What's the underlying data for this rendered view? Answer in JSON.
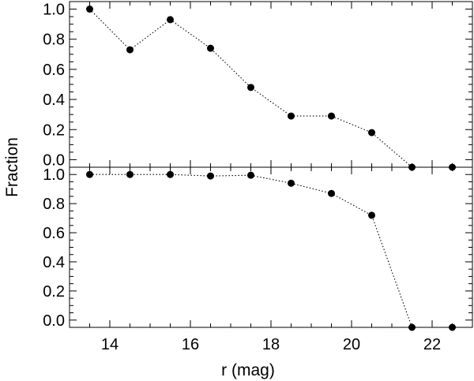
{
  "colors": {
    "background": "#ffffff",
    "axes": "#000000",
    "markers": "#000000",
    "line": "#000000"
  },
  "chart_data": [
    {
      "type": "scatter",
      "panel": "top",
      "line_style": "dotted",
      "marker": "filled-circle",
      "xlabel": "",
      "ylabel": "Fraction",
      "xlim": [
        13.0,
        23.0
      ],
      "ylim": [
        -0.05,
        1.05
      ],
      "x_ticks": [
        14,
        16,
        18,
        20,
        22
      ],
      "y_ticks": [
        {
          "value": 0.0,
          "label": "0.0"
        },
        {
          "value": 0.2,
          "label": "0.2"
        },
        {
          "value": 0.4,
          "label": "0.4"
        },
        {
          "value": 0.6,
          "label": "0.6"
        },
        {
          "value": 0.8,
          "label": "0.8"
        },
        {
          "value": 1.0,
          "label": "1.0"
        }
      ],
      "x": [
        13.5,
        14.5,
        15.5,
        16.5,
        17.5,
        18.5,
        19.5,
        20.5,
        21.5,
        22.5
      ],
      "y": [
        1.0,
        0.73,
        0.93,
        0.74,
        0.48,
        0.29,
        0.29,
        0.18,
        -0.05,
        -0.05
      ]
    },
    {
      "type": "scatter",
      "panel": "bottom",
      "line_style": "dotted",
      "marker": "filled-circle",
      "xlabel": "r (mag)",
      "ylabel": "",
      "xlim": [
        13.0,
        23.0
      ],
      "ylim": [
        -0.05,
        1.05
      ],
      "x_ticks": [
        {
          "value": 14,
          "label": "14"
        },
        {
          "value": 16,
          "label": "16"
        },
        {
          "value": 18,
          "label": "18"
        },
        {
          "value": 20,
          "label": "20"
        },
        {
          "value": 22,
          "label": "22"
        }
      ],
      "y_ticks": [
        {
          "value": 0.0,
          "label": "0.0"
        },
        {
          "value": 0.2,
          "label": "0.2"
        },
        {
          "value": 0.4,
          "label": "0.4"
        },
        {
          "value": 0.6,
          "label": "0.6"
        },
        {
          "value": 0.8,
          "label": "0.8"
        },
        {
          "value": 1.0,
          "label": "1.0"
        }
      ],
      "x": [
        13.5,
        14.5,
        15.5,
        16.5,
        17.5,
        18.5,
        19.5,
        20.5,
        21.5,
        22.5
      ],
      "y": [
        1.0,
        1.0,
        1.0,
        0.99,
        0.995,
        0.94,
        0.87,
        0.72,
        -0.05,
        -0.05
      ]
    }
  ]
}
